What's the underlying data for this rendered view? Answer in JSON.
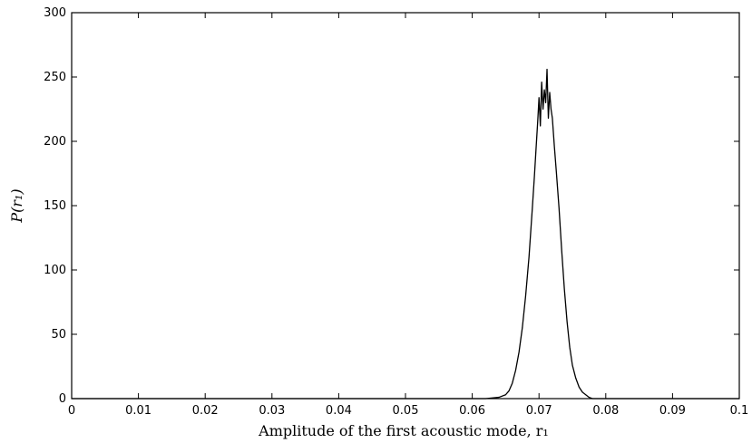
{
  "chart_data": {
    "type": "line",
    "title": "",
    "xlabel": "Amplitude of the first acoustic mode, r₁",
    "ylabel": "P(r₁)",
    "xlim": [
      0,
      0.1
    ],
    "ylim": [
      0,
      300
    ],
    "xticks": [
      0,
      0.01,
      0.02,
      0.03,
      0.04,
      0.05,
      0.06,
      0.07,
      0.08,
      0.09,
      0.1
    ],
    "xtick_labels": [
      "0",
      "0.01",
      "0.02",
      "0.03",
      "0.04",
      "0.05",
      "0.06",
      "0.07",
      "0.08",
      "0.09",
      "0.1"
    ],
    "yticks": [
      0,
      50,
      100,
      150,
      200,
      250,
      300
    ],
    "ytick_labels": [
      "0",
      "50",
      "100",
      "150",
      "200",
      "250",
      "300"
    ],
    "grid": false,
    "series": [
      {
        "color": "#000000",
        "x": [
          0,
          0.02,
          0.04,
          0.055,
          0.062,
          0.064,
          0.065,
          0.0655,
          0.066,
          0.0665,
          0.067,
          0.0675,
          0.068,
          0.0685,
          0.069,
          0.0693,
          0.0696,
          0.0698,
          0.07,
          0.0702,
          0.0704,
          0.0706,
          0.0708,
          0.071,
          0.0712,
          0.0714,
          0.0716,
          0.0718,
          0.072,
          0.0723,
          0.0726,
          0.073,
          0.0734,
          0.0738,
          0.0742,
          0.0746,
          0.075,
          0.0755,
          0.076,
          0.0765,
          0.077,
          0.0775,
          0.078,
          0.08,
          0.085,
          0.09,
          0.1
        ],
        "y": [
          0,
          0,
          0,
          0,
          0,
          1,
          3,
          6,
          12,
          22,
          36,
          55,
          80,
          110,
          148,
          172,
          198,
          215,
          234,
          212,
          246,
          225,
          240,
          230,
          256,
          218,
          238,
          225,
          218,
          196,
          176,
          148,
          115,
          85,
          60,
          40,
          26,
          16,
          9,
          5,
          3,
          1,
          0,
          0,
          0,
          0,
          0
        ]
      }
    ]
  }
}
